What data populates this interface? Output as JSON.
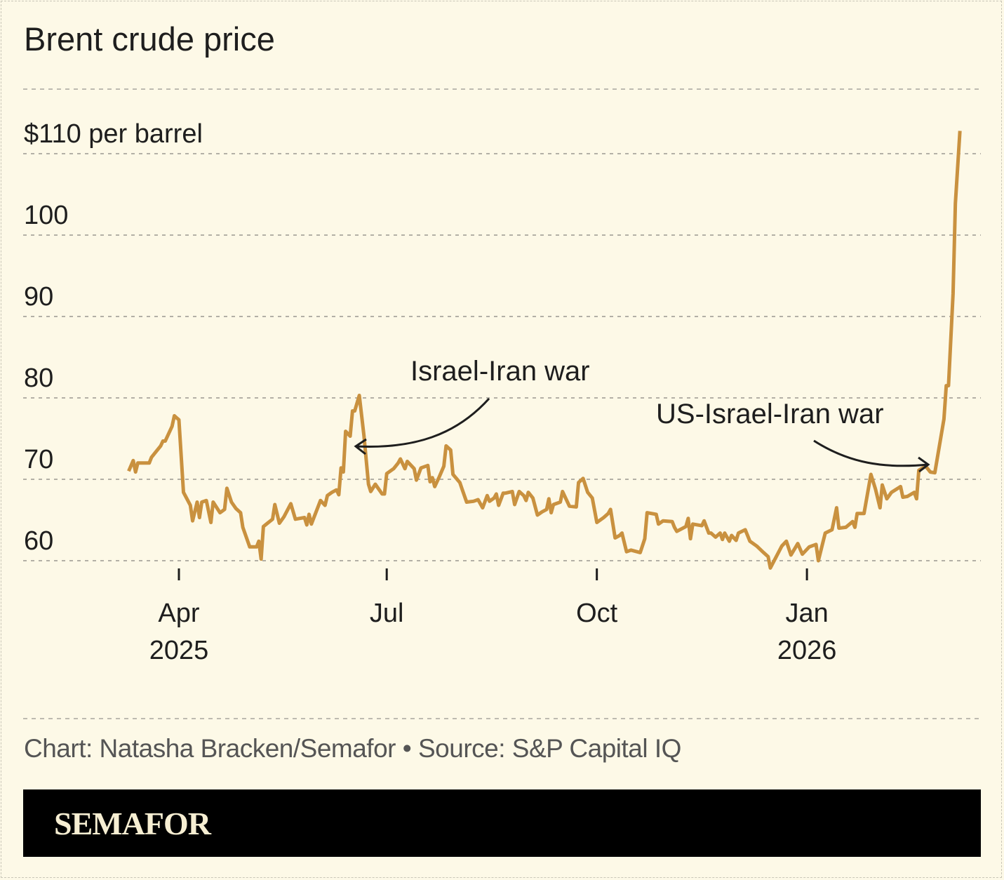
{
  "title": "Brent crude price",
  "credit": "Chart: Natasha Bracken/Semafor • Source: S&P Capital IQ",
  "logo": "SEMAFOR",
  "chart_data": {
    "type": "line",
    "title": "Brent crude price",
    "ylabel": "$110 per barrel",
    "ylim": [
      60,
      110
    ],
    "y_ticks": [
      60,
      70,
      80,
      90,
      100,
      110
    ],
    "y_tick_labels": [
      "60",
      "70",
      "80",
      "90",
      "100",
      "$110 per barrel"
    ],
    "x_ticks": [
      "2025-04-01",
      "2025-07-01",
      "2025-10-01",
      "2026-01-01"
    ],
    "x_tick_labels": [
      [
        "Apr",
        "2025"
      ],
      [
        "Jul",
        ""
      ],
      [
        "Oct",
        ""
      ],
      [
        "Jan",
        "2026"
      ]
    ],
    "grid": "horizontal dashed",
    "line_color": "#c9913f",
    "annotations": [
      {
        "text": "Israel-Iran war",
        "date": "2025-06-17"
      },
      {
        "text": "US-Israel-Iran war",
        "date": "2026-02-22"
      }
    ],
    "series": [
      {
        "dates": [
          "2025-03-10",
          "2025-03-12",
          "2025-03-13",
          "2025-03-14",
          "2025-03-19",
          "2025-03-20",
          "2025-03-22",
          "2025-03-24",
          "2025-03-25",
          "2025-03-26",
          "2025-03-29",
          "2025-03-30",
          "2025-04-01",
          "2025-04-03",
          "2025-04-06",
          "2025-04-07",
          "2025-04-09",
          "2025-04-10",
          "2025-04-11",
          "2025-04-13",
          "2025-04-15",
          "2025-04-16",
          "2025-04-19",
          "2025-04-21",
          "2025-04-22",
          "2025-04-24",
          "2025-04-26",
          "2025-04-28",
          "2025-04-29",
          "2025-05-02",
          "2025-05-05",
          "2025-05-06",
          "2025-05-07",
          "2025-05-08",
          "2025-05-12",
          "2025-05-13",
          "2025-05-15",
          "2025-05-17",
          "2025-05-20",
          "2025-05-22",
          "2025-05-26",
          "2025-05-27",
          "2025-05-28",
          "2025-05-29",
          "2025-06-02",
          "2025-06-04",
          "2025-06-05",
          "2025-06-07",
          "2025-06-09",
          "2025-06-10",
          "2025-06-11",
          "2025-06-12",
          "2025-06-13",
          "2025-06-15",
          "2025-06-16",
          "2025-06-17",
          "2025-06-19",
          "2025-06-21",
          "2025-06-23",
          "2025-06-24",
          "2025-06-26",
          "2025-06-29",
          "2025-06-30",
          "2025-07-01",
          "2025-07-04",
          "2025-07-06",
          "2025-07-07",
          "2025-07-09",
          "2025-07-10",
          "2025-07-13",
          "2025-07-14",
          "2025-07-16",
          "2025-07-19",
          "2025-07-20",
          "2025-07-21",
          "2025-07-22",
          "2025-07-24",
          "2025-07-26",
          "2025-07-27",
          "2025-07-29",
          "2025-07-30",
          "2025-08-02",
          "2025-08-03",
          "2025-08-05",
          "2025-08-08",
          "2025-08-10",
          "2025-08-12",
          "2025-08-14",
          "2025-08-15",
          "2025-08-17",
          "2025-08-18",
          "2025-08-19",
          "2025-08-21",
          "2025-08-22",
          "2025-08-25",
          "2025-08-26",
          "2025-08-28",
          "2025-08-30",
          "2025-08-31",
          "2025-09-01",
          "2025-09-03",
          "2025-09-05",
          "2025-09-07",
          "2025-09-09",
          "2025-09-10",
          "2025-09-11",
          "2025-09-12",
          "2025-09-15",
          "2025-09-16",
          "2025-09-19",
          "2025-09-22",
          "2025-09-23",
          "2025-09-25",
          "2025-09-27",
          "2025-09-29",
          "2025-10-01",
          "2025-10-04",
          "2025-10-06",
          "2025-10-07",
          "2025-10-09",
          "2025-10-11",
          "2025-10-12",
          "2025-10-14",
          "2025-10-16",
          "2025-10-20",
          "2025-10-22",
          "2025-10-23",
          "2025-10-27",
          "2025-10-28",
          "2025-10-30",
          "2025-11-03",
          "2025-11-04",
          "2025-11-05",
          "2025-11-09",
          "2025-11-10",
          "2025-11-11",
          "2025-11-12",
          "2025-11-16",
          "2025-11-17",
          "2025-11-19",
          "2025-11-20",
          "2025-11-22",
          "2025-11-24",
          "2025-11-25",
          "2025-11-26",
          "2025-11-28",
          "2025-11-29",
          "2025-12-01",
          "2025-12-02",
          "2025-12-05",
          "2025-12-07",
          "2025-12-10",
          "2025-12-13",
          "2025-12-15",
          "2025-12-16",
          "2025-12-18",
          "2025-12-21",
          "2025-12-23",
          "2025-12-25",
          "2025-12-28",
          "2025-12-30",
          "2026-01-02",
          "2026-01-05",
          "2026-01-06",
          "2026-01-09",
          "2026-01-12",
          "2026-01-14",
          "2026-01-15",
          "2026-01-18",
          "2026-01-21",
          "2026-01-22",
          "2026-01-23",
          "2026-01-26",
          "2026-01-29",
          "2026-01-31",
          "2026-02-02",
          "2026-02-03",
          "2026-02-05",
          "2026-02-07",
          "2026-02-11",
          "2026-02-12",
          "2026-02-14",
          "2026-02-17",
          "2026-02-18",
          "2026-02-19",
          "2026-02-22",
          "2026-02-24",
          "2026-02-26",
          "2026-03-02",
          "2026-03-03",
          "2026-03-04",
          "2026-03-06",
          "2026-03-07",
          "2026-03-09"
        ],
        "values": [
          71.0,
          72.3,
          70.9,
          72.0,
          72.0,
          72.7,
          73.4,
          74.1,
          74.7,
          74.7,
          76.5,
          77.8,
          77.3,
          68.4,
          66.8,
          64.9,
          67.2,
          65.3,
          67.2,
          67.4,
          64.7,
          67.2,
          65.9,
          66.3,
          68.9,
          67.2,
          66.4,
          65.9,
          64.1,
          61.7,
          61.7,
          62.4,
          60.2,
          64.2,
          65.1,
          66.9,
          64.6,
          65.4,
          67.0,
          65.1,
          65.3,
          64.4,
          65.7,
          64.5,
          67.4,
          66.8,
          68.0,
          68.4,
          68.7,
          68.1,
          71.4,
          70.9,
          75.9,
          75.3,
          78.4,
          78.4,
          80.3,
          75.4,
          69.4,
          68.5,
          69.4,
          68.2,
          68.2,
          70.7,
          71.3,
          72.0,
          72.5,
          71.3,
          72.2,
          71.3,
          69.9,
          71.4,
          71.7,
          69.7,
          70.2,
          69.1,
          70.3,
          71.6,
          74.1,
          73.6,
          70.6,
          69.6,
          68.8,
          67.2,
          67.3,
          67.5,
          66.5,
          68.0,
          67.3,
          67.7,
          68.2,
          66.8,
          68.3,
          68.3,
          68.5,
          66.9,
          68.5,
          68.0,
          67.4,
          68.4,
          67.7,
          65.6,
          66.0,
          66.3,
          67.6,
          65.9,
          66.9,
          67.2,
          68.5,
          66.7,
          66.6,
          69.6,
          70.1,
          68.4,
          67.7,
          64.7,
          65.3,
          65.8,
          66.3,
          62.8,
          63.1,
          63.4,
          61.1,
          61.3,
          61.0,
          62.7,
          65.9,
          65.7,
          64.5,
          64.9,
          64.8,
          64.1,
          63.6,
          64.2,
          65.2,
          62.7,
          64.5,
          64.3,
          64.9,
          63.4,
          63.4,
          62.9,
          63.4,
          62.6,
          63.4,
          62.4,
          63.1,
          62.5,
          63.4,
          63.8,
          62.4,
          61.8,
          61.0,
          60.5,
          59.1,
          60.2,
          61.8,
          62.4,
          60.7,
          62.1,
          60.8,
          61.7,
          62.0,
          60.0,
          63.4,
          63.8,
          66.5,
          64.0,
          64.1,
          64.8,
          64.1,
          65.8,
          65.8,
          70.6,
          68.8,
          66.5,
          69.3,
          67.6,
          68.4,
          69.1,
          67.8,
          67.9,
          68.4,
          67.6,
          71.1,
          71.6,
          70.9,
          70.8,
          77.4,
          81.5,
          81.5,
          92.8,
          103.9,
          112.8
        ]
      }
    ]
  }
}
